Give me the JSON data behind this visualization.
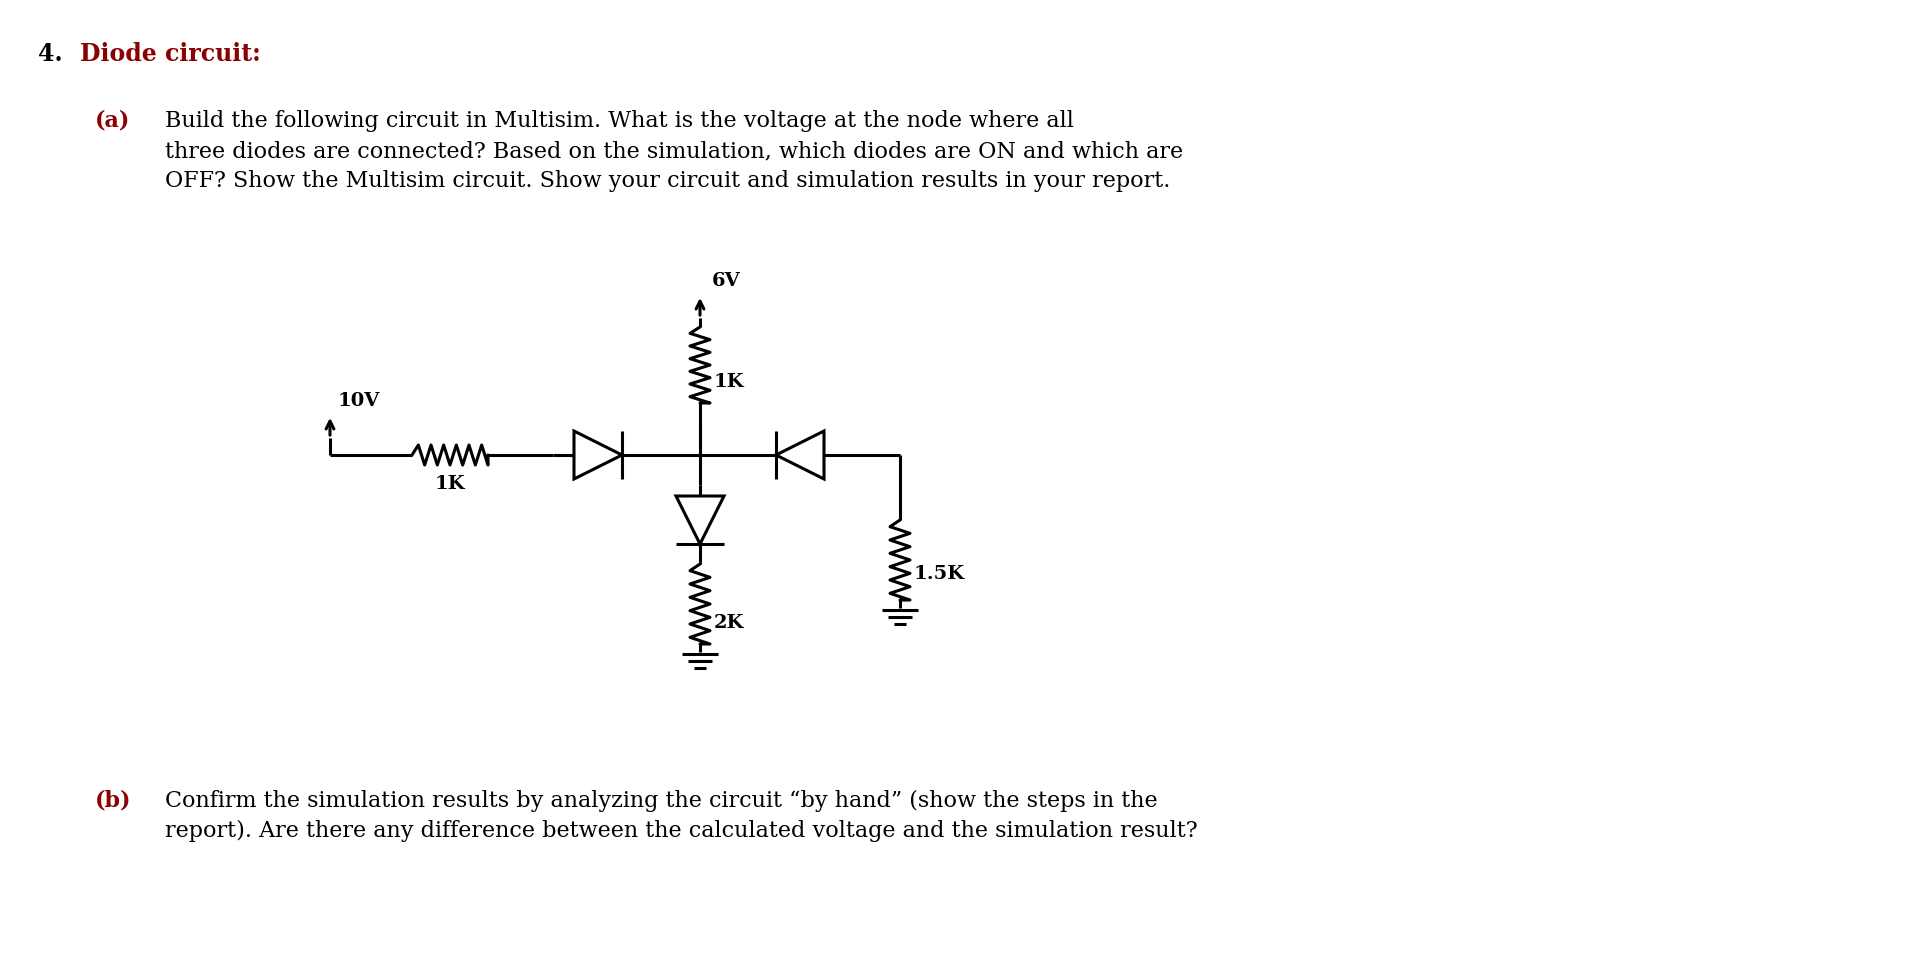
{
  "title_num": "4.",
  "title_text": "Diode circuit:",
  "part_a_label": "(a)",
  "part_a_text_line1": "Build the following circuit in Multisim. What is the voltage at the node where all",
  "part_a_text_line2": "three diodes are connected? Based on the simulation, which diodes are ON and which are",
  "part_a_text_line3": "OFF? Show the Multisim circuit. Show your circuit and simulation results in your report.",
  "part_b_label": "(b)",
  "part_b_text_line1": "Confirm the simulation results by analyzing the circuit “by hand” (show the steps in the",
  "part_b_text_line2": "report). Are there any difference between the calculated voltage and the simulation result?",
  "dark_red": "#8B0000",
  "black": "#000000",
  "bg_color": "#ffffff",
  "label_6V": "6V",
  "label_1K_top": "1K",
  "label_10V": "10V",
  "label_1K_left": "1K",
  "label_2K": "2K",
  "label_15K": "1.5K"
}
